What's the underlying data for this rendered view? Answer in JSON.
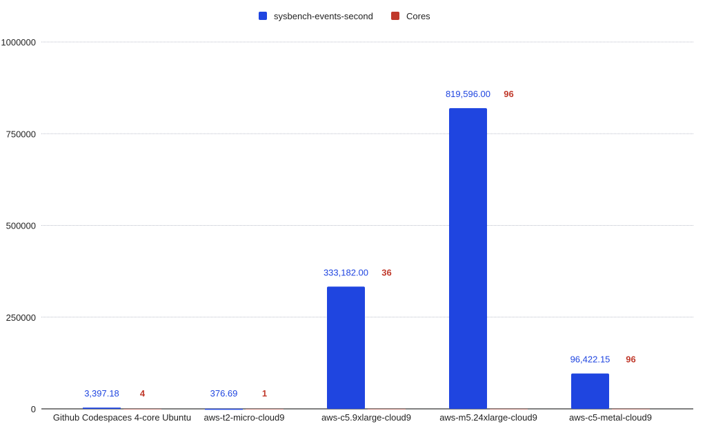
{
  "chart_data": {
    "type": "bar",
    "title": "",
    "xlabel": "",
    "ylabel": "",
    "ylim": [
      0,
      1000000
    ],
    "yticks": [
      0,
      250000,
      500000,
      750000,
      1000000
    ],
    "ytick_labels": [
      "0",
      "250000",
      "500000",
      "750000",
      "1000000"
    ],
    "grid": true,
    "legend_position": "top-center",
    "categories": [
      "Github Codespaces 4-core Ubuntu",
      "aws-t2-micro-cloud9",
      "aws-c5.9xlarge-cloud9",
      "aws-m5.24xlarge-cloud9",
      "aws-c5-metal-cloud9"
    ],
    "series": [
      {
        "name": "sysbench-events-second",
        "color": "#1f45e0",
        "values": [
          3397.18,
          376.69,
          333182.0,
          819596.0,
          96422.15
        ],
        "labels": [
          "3,397.18",
          "376.69",
          "333,182.00",
          "819,596.00",
          "96,422.15"
        ]
      },
      {
        "name": "Cores",
        "color": "#c0392b",
        "values": [
          4,
          1,
          36,
          96,
          96
        ],
        "labels": [
          "4",
          "1",
          "36",
          "96",
          "96"
        ]
      }
    ]
  }
}
